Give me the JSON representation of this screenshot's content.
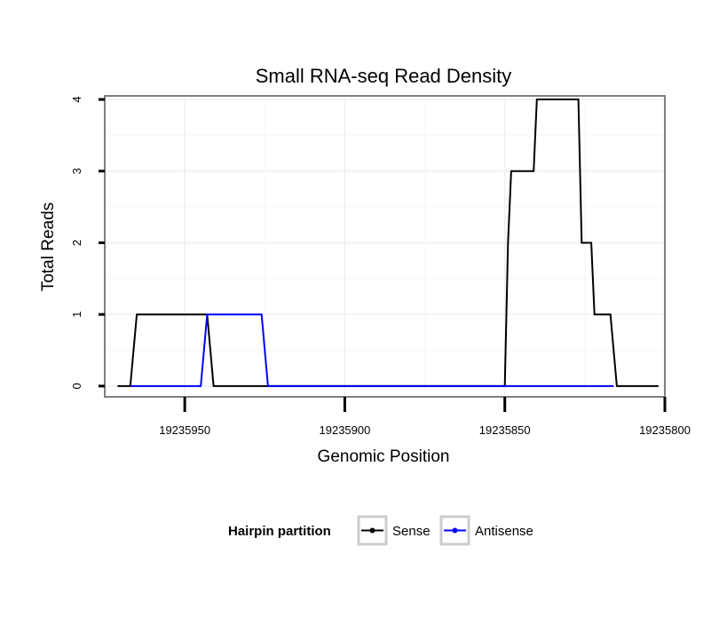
{
  "chart_data": {
    "type": "line",
    "title": "Small RNA-seq Read Density",
    "xlabel": "Genomic Position",
    "ylabel": "Total Reads",
    "x_reversed": true,
    "xlim": [
      19235975,
      19235800
    ],
    "ylim": [
      -0.15,
      4.05
    ],
    "x_ticks": [
      19235950,
      19235900,
      19235850,
      19235800
    ],
    "x_tick_labels": [
      "19235950",
      "19235900",
      "19235850",
      "19235800"
    ],
    "y_ticks": [
      0,
      1,
      2,
      3,
      4
    ],
    "y_tick_labels": [
      "0",
      "1",
      "2",
      "3",
      "4"
    ],
    "grid": true,
    "legend": {
      "title": "Hairpin partition",
      "position": "bottom",
      "entries": [
        "Sense",
        "Antisense"
      ]
    },
    "series": [
      {
        "name": "Sense",
        "color": "#000000",
        "x": [
          19235971,
          19235967,
          19235965,
          19235944,
          19235943,
          19235941,
          19235936,
          19235850,
          19235849,
          19235848,
          19235841,
          19235840,
          19235827,
          19235826,
          19235823,
          19235822,
          19235817,
          19235815,
          19235802
        ],
        "y": [
          0,
          0,
          1,
          1,
          1,
          0,
          0,
          0,
          2,
          3,
          3,
          4,
          4,
          2,
          2,
          1,
          1,
          0,
          0
        ]
      },
      {
        "name": "Antisense",
        "color": "#0000ff",
        "x": [
          19235967,
          19235945,
          19235943,
          19235926,
          19235924,
          19235850,
          19235816
        ],
        "y": [
          0,
          0,
          1,
          1,
          0,
          0,
          0
        ]
      }
    ]
  }
}
